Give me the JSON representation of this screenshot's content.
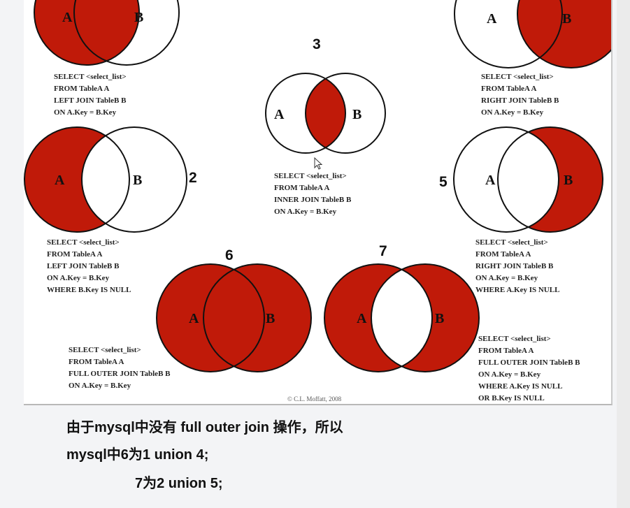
{
  "colors": {
    "fill": "#c01a09",
    "stroke": "#111111"
  },
  "set_labels": {
    "a": "A",
    "b": "B"
  },
  "diagrams": [
    {
      "num": "",
      "sql": [
        "SELECT <select_list>",
        "FROM TableA A",
        "LEFT JOIN TableB B",
        "ON A.Key = B.Key"
      ]
    },
    {
      "num": "2",
      "sql": [
        "SELECT <select_list>",
        "FROM TableA A",
        "LEFT JOIN TableB B",
        "ON A.Key = B.Key",
        "WHERE B.Key IS NULL"
      ]
    },
    {
      "num": "3",
      "sql": [
        "SELECT <select_list>",
        "FROM TableA A",
        "INNER JOIN TableB B",
        "ON A.Key = B.Key"
      ]
    },
    {
      "num": "",
      "sql": [
        "SELECT <select_list>",
        "FROM TableA A",
        "RIGHT JOIN TableB B",
        "ON A.Key = B.Key"
      ]
    },
    {
      "num": "5",
      "sql": [
        "SELECT <select_list>",
        "FROM TableA A",
        "RIGHT JOIN TableB B",
        "ON A.Key = B.Key",
        "WHERE A.Key IS NULL"
      ]
    },
    {
      "num": "6",
      "sql": [
        "SELECT <select_list>",
        "FROM TableA A",
        "FULL OUTER JOIN TableB B",
        "ON A.Key = B.Key"
      ]
    },
    {
      "num": "7",
      "sql": [
        "SELECT <select_list>",
        "FROM TableA A",
        "FULL OUTER JOIN TableB B",
        "ON A.Key = B.Key",
        "WHERE A.Key IS NULL",
        "OR B.Key IS NULL"
      ]
    }
  ],
  "credit": "© C.L. Moffatt, 2008",
  "caption": {
    "line1": "由于mysql中没有 full outer join 操作，所以",
    "line2": "mysql中6为1 union 4;",
    "line3": "7为2 union 5;"
  }
}
